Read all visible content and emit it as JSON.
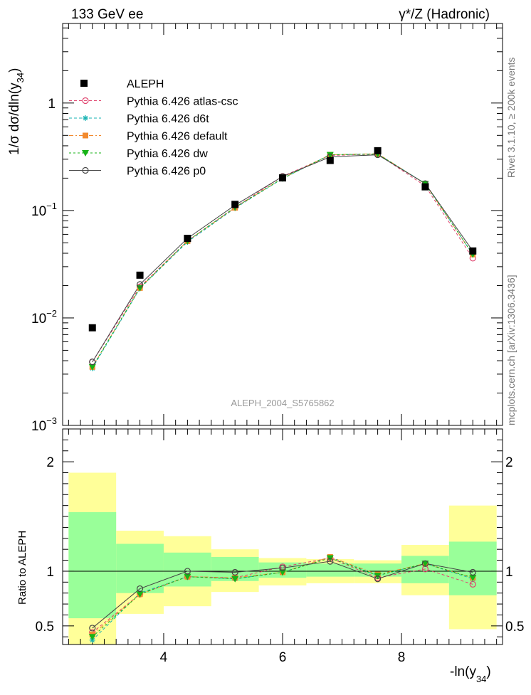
{
  "header": {
    "left_title": "133 GeV ee",
    "right_title": "γ*/Z (Hadronic)"
  },
  "side_text": {
    "rivet": "Rivet 3.1.10, ≥ 200k events",
    "mcplots": "mcplots.cern.ch [arXiv:1306.3436]"
  },
  "analysis_label": "ALEPH_2004_S5765862",
  "colors": {
    "yellow_band": "#ffff99",
    "green_band": "#99ff99",
    "atlas_csc": "#e0446e",
    "d6t": "#17b3b3",
    "default": "#f28a2e",
    "dw": "#16b316",
    "p0": "#444444",
    "data": "#000000"
  },
  "chart_data": [
    {
      "type": "scatter",
      "name": "main",
      "title": "133 GeV ee",
      "ylabel": "1/σ dσ/dln(y34)",
      "ylabel_parts": {
        "main": "1/σ  dσ/dln(y",
        "sub": "34",
        "close": ")"
      },
      "yscale": "log",
      "ylim": [
        0.001,
        5.5
      ],
      "xlim": [
        2.3,
        9.7
      ],
      "y_ticks": [
        {
          "value": 1,
          "label": "1"
        },
        {
          "value": 0.1,
          "base": "10",
          "exp": "−1"
        },
        {
          "value": 0.01,
          "base": "10",
          "exp": "−2"
        },
        {
          "value": 0.001,
          "base": "10",
          "exp": "−3"
        }
      ],
      "x": [
        2.8,
        3.6,
        4.4,
        5.2,
        6.0,
        6.8,
        7.6,
        8.4,
        9.2
      ],
      "x_edges": [
        2.4,
        3.2,
        4.0,
        4.8,
        5.6,
        6.4,
        7.2,
        8.0,
        8.8,
        9.6
      ],
      "data": {
        "name": "ALEPH",
        "values": [
          0.0081,
          0.025,
          0.055,
          0.114,
          0.201,
          0.292,
          0.36,
          0.166,
          0.042
        ]
      },
      "series": [
        {
          "key": "atlas_csc",
          "name": "Pythia 6.426 atlas-csc",
          "marker": "open-circle",
          "dash": "4,3",
          "values": [
            0.0039,
            0.0195,
            0.052,
            0.107,
            0.208,
            0.325,
            0.335,
            0.169,
            0.036
          ]
        },
        {
          "key": "d6t",
          "name": "Pythia 6.426 d6t",
          "marker": "star",
          "dash": "4,3",
          "values": [
            0.0034,
            0.0188,
            0.051,
            0.105,
            0.198,
            0.33,
            0.336,
            0.178,
            0.039
          ]
        },
        {
          "key": "default",
          "name": "Pythia 6.426 default",
          "marker": "square",
          "dash": "6,3,2,3",
          "values": [
            0.0035,
            0.019,
            0.052,
            0.106,
            0.2,
            0.33,
            0.338,
            0.177,
            0.039
          ]
        },
        {
          "key": "dw",
          "name": "Pythia 6.426 dw",
          "marker": "triangle-down",
          "dash": "3,3",
          "values": [
            0.0035,
            0.019,
            0.052,
            0.107,
            0.199,
            0.33,
            0.335,
            0.177,
            0.039
          ]
        },
        {
          "key": "p0",
          "name": "Pythia 6.426 p0",
          "marker": "open-circle",
          "dash": "",
          "values": [
            0.0039,
            0.0205,
            0.055,
            0.112,
            0.207,
            0.315,
            0.33,
            0.178,
            0.042
          ]
        }
      ]
    },
    {
      "type": "scatter",
      "name": "ratio",
      "ylabel": "Ratio to ALEPH",
      "xlabel": "-ln(y34)",
      "xlabel_parts": {
        "main": "-ln(y",
        "sub": "34",
        "close": ")"
      },
      "ylim": [
        0.33,
        2.3
      ],
      "xlim": [
        2.3,
        9.7
      ],
      "x_ticks": [
        4,
        6,
        8
      ],
      "y_ticks": [
        0.5,
        1,
        2
      ],
      "x": [
        2.8,
        3.6,
        4.4,
        5.2,
        6.0,
        6.8,
        7.6,
        8.4,
        9.2
      ],
      "x_edges": [
        2.4,
        3.2,
        4.0,
        4.8,
        5.6,
        6.4,
        7.2,
        8.0,
        8.8,
        9.6
      ],
      "band_yellow": [
        [
          0.33,
          1.9
        ],
        [
          0.61,
          1.37
        ],
        [
          0.68,
          1.32
        ],
        [
          0.81,
          1.2
        ],
        [
          0.87,
          1.12
        ],
        [
          0.89,
          1.11
        ],
        [
          0.89,
          1.1
        ],
        [
          0.78,
          1.24
        ],
        [
          0.47,
          1.6
        ]
      ],
      "band_green": [
        [
          0.57,
          1.54
        ],
        [
          0.8,
          1.25
        ],
        [
          0.86,
          1.17
        ],
        [
          0.91,
          1.13
        ],
        [
          0.94,
          1.08
        ],
        [
          0.95,
          1.07
        ],
        [
          0.95,
          1.07
        ],
        [
          0.89,
          1.14
        ],
        [
          0.78,
          1.27
        ]
      ],
      "series": [
        {
          "key": "atlas_csc",
          "name": "Pythia 6.426 atlas-csc",
          "marker": "open-circle",
          "dash": "4,3",
          "values": [
            0.44,
            0.79,
            0.95,
            0.94,
            1.04,
            1.12,
            0.94,
            1.02,
            0.88
          ]
        },
        {
          "key": "d6t",
          "name": "Pythia 6.426 d6t",
          "marker": "star",
          "dash": "4,3",
          "values": [
            0.37,
            0.8,
            0.95,
            0.93,
            0.99,
            1.13,
            0.96,
            1.07,
            0.93
          ]
        },
        {
          "key": "default",
          "name": "Pythia 6.426 default",
          "marker": "square",
          "dash": "6,3,2,3",
          "values": [
            0.42,
            0.79,
            0.95,
            0.94,
            0.99,
            1.13,
            0.97,
            1.07,
            0.94
          ]
        },
        {
          "key": "dw",
          "name": "Pythia 6.426 dw",
          "marker": "triangle-down",
          "dash": "3,3",
          "values": [
            0.4,
            0.79,
            0.95,
            0.93,
            0.99,
            1.12,
            0.96,
            1.07,
            0.94
          ]
        },
        {
          "key": "p0",
          "name": "Pythia 6.426 p0",
          "marker": "open-circle",
          "dash": "",
          "values": [
            0.48,
            0.84,
            1.0,
            0.99,
            1.03,
            1.09,
            0.93,
            1.07,
            0.99
          ]
        }
      ]
    }
  ]
}
